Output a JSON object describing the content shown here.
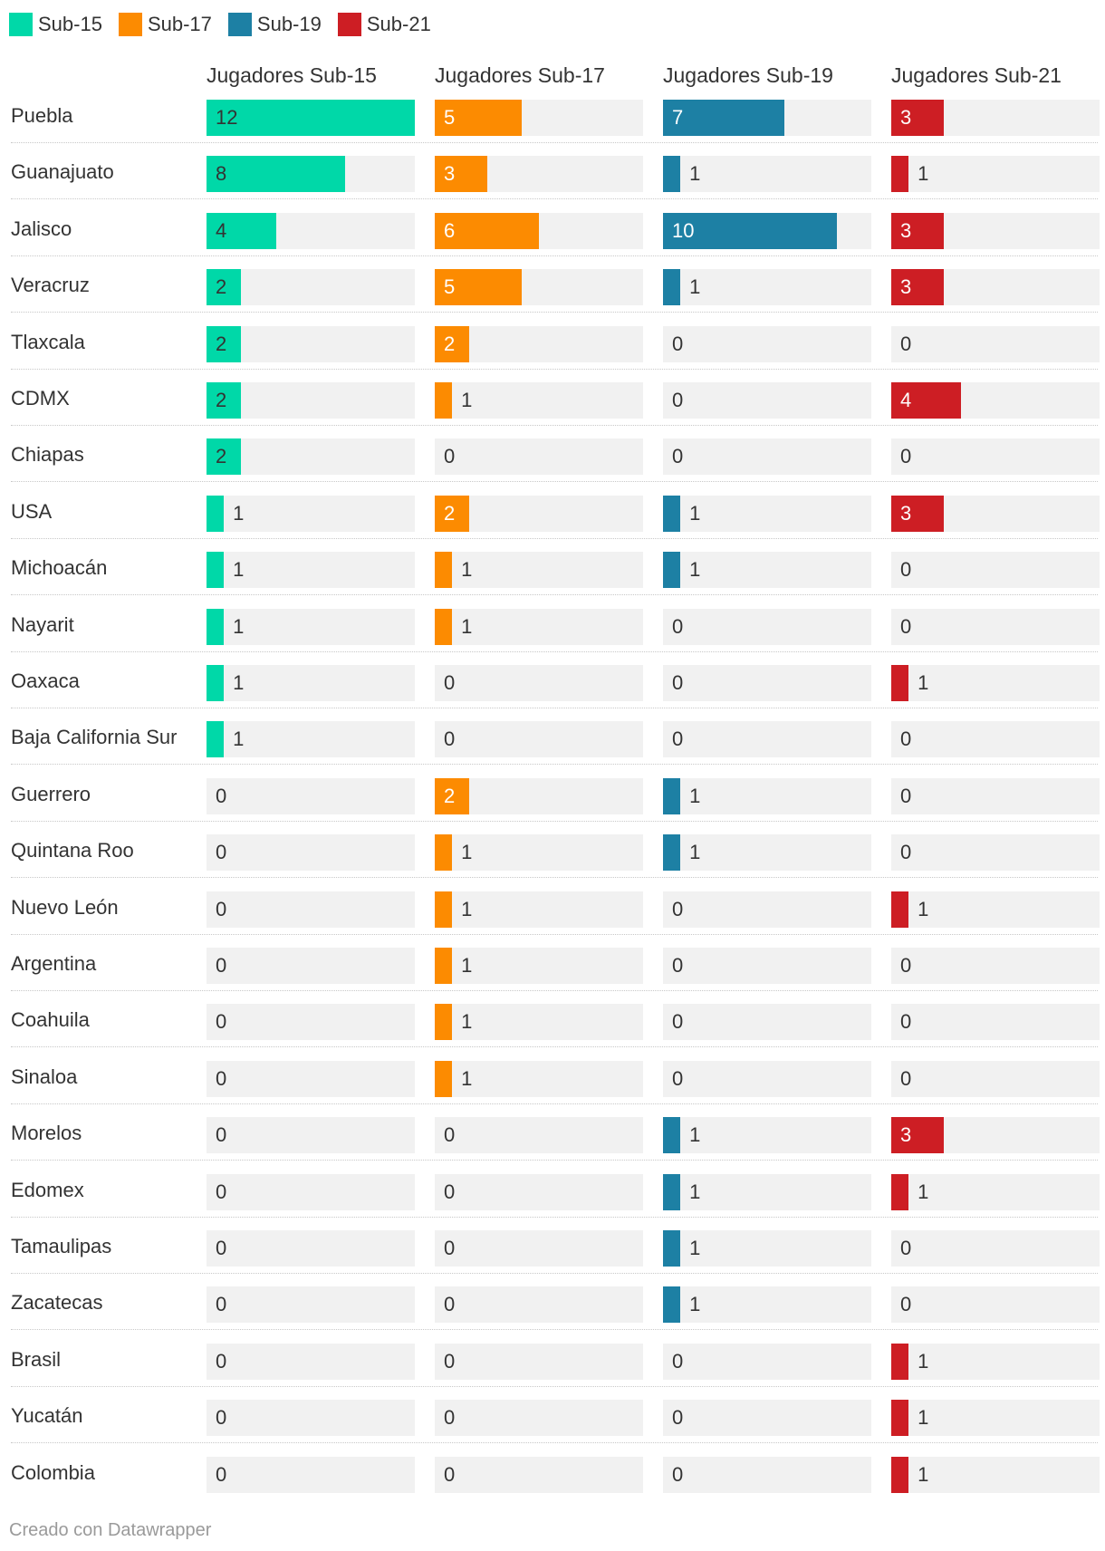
{
  "legend": [
    {
      "label": "Sub-15",
      "color": "#00d8a8"
    },
    {
      "label": "Sub-17",
      "color": "#fc8b01"
    },
    {
      "label": "Sub-19",
      "color": "#1d80a4"
    },
    {
      "label": "Sub-21",
      "color": "#cd1e24"
    }
  ],
  "footer": "Creado con Datawrapper",
  "chart_data": {
    "type": "bar",
    "series": [
      {
        "name": "Jugadores Sub-15",
        "color": "#00d8a8",
        "text_on_bar": "dark",
        "values": [
          12,
          8,
          4,
          2,
          2,
          2,
          2,
          1,
          1,
          1,
          1,
          1,
          0,
          0,
          0,
          0,
          0,
          0,
          0,
          0,
          0,
          0,
          0,
          0,
          0
        ]
      },
      {
        "name": "Jugadores Sub-17",
        "color": "#fc8b01",
        "text_on_bar": "light",
        "values": [
          5,
          3,
          6,
          5,
          2,
          1,
          0,
          2,
          1,
          1,
          0,
          0,
          2,
          1,
          1,
          1,
          1,
          1,
          0,
          0,
          0,
          0,
          0,
          0,
          0
        ]
      },
      {
        "name": "Jugadores Sub-19",
        "color": "#1d80a4",
        "text_on_bar": "light",
        "values": [
          7,
          1,
          10,
          1,
          0,
          0,
          0,
          1,
          1,
          0,
          0,
          0,
          1,
          1,
          0,
          0,
          0,
          0,
          1,
          1,
          1,
          1,
          0,
          0,
          0
        ]
      },
      {
        "name": "Jugadores Sub-21",
        "color": "#cd1e24",
        "text_on_bar": "light",
        "values": [
          3,
          1,
          3,
          3,
          0,
          4,
          0,
          3,
          0,
          0,
          1,
          0,
          0,
          0,
          1,
          0,
          0,
          0,
          3,
          1,
          0,
          0,
          1,
          1,
          1
        ]
      }
    ],
    "categories": [
      "Puebla",
      "Guanajuato",
      "Jalisco",
      "Veracruz",
      "Tlaxcala",
      "CDMX",
      "Chiapas",
      "USA",
      "Michoacán",
      "Nayarit",
      "Oaxaca",
      "Baja California Sur",
      "Guerrero",
      "Quintana Roo",
      "Nuevo León",
      "Argentina",
      "Coahuila",
      "Sinaloa",
      "Morelos",
      "Edomex",
      "Tamaulipas",
      "Zacatecas",
      "Brasil",
      "Yucatán",
      "Colombia"
    ],
    "xlim": [
      0,
      12
    ],
    "title": "",
    "xlabel": "",
    "ylabel": ""
  }
}
